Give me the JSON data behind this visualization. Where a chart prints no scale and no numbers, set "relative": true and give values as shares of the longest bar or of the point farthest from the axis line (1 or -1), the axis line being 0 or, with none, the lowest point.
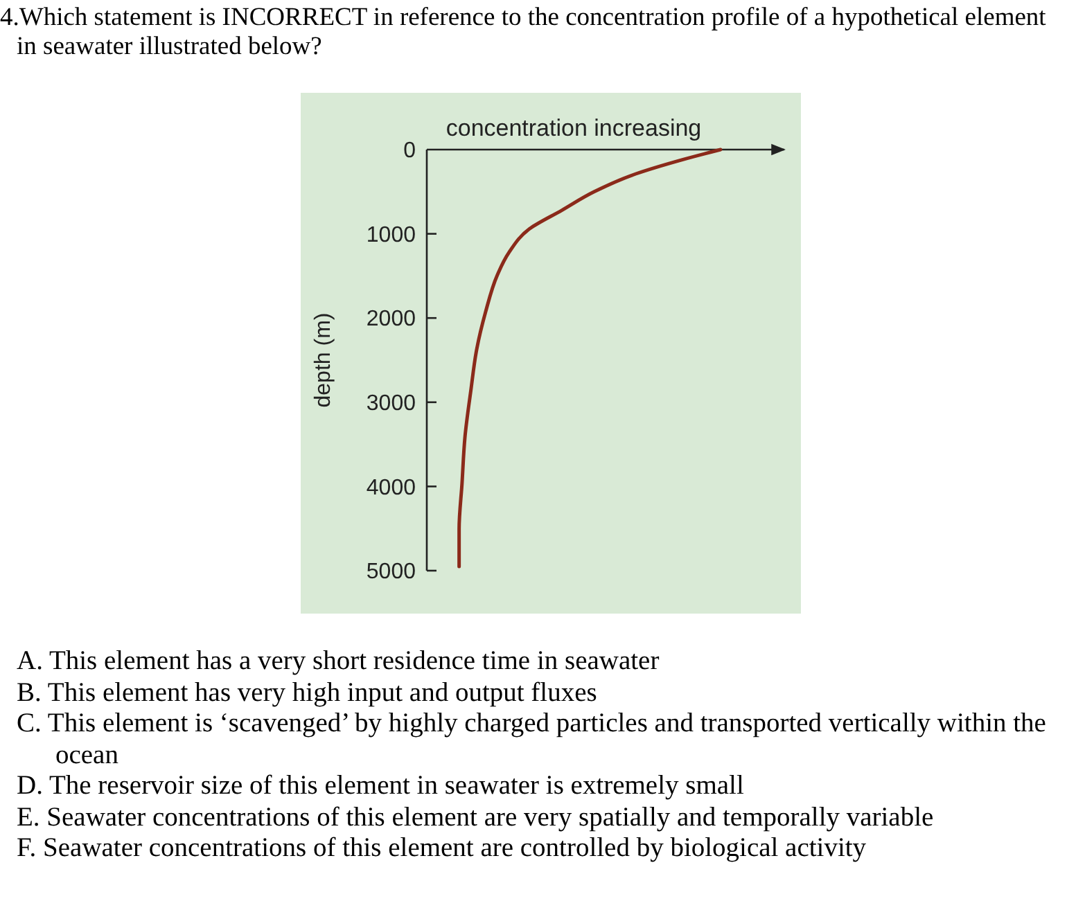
{
  "chart_data": {
    "type": "line",
    "orientation": "horizontal",
    "relative": true,
    "title": "4.Which statement is INCORRECT in reference to the concentration profile of a hypothetical element in seawater illustrated below?",
    "xlabel": "concentration increasing",
    "ylabel": "depth (m)",
    "x": [
      0,
      120,
      290,
      500,
      720,
      940,
      1220,
      1490,
      1930,
      2370,
      2860,
      3410,
      3960,
      4510,
      4950
    ],
    "series": [
      {
        "color": "#8b2a1a",
        "values": [
          1.0,
          0.87,
          0.71,
          0.57,
          0.46,
          0.35,
          0.28,
          0.24,
          0.2,
          0.17,
          0.15,
          0.13,
          0.12,
          0.11,
          0.11
        ]
      }
    ],
    "ylim": [
      5000,
      0
    ],
    "yticks": [
      0,
      1000,
      2000,
      3000,
      4000,
      5000
    ],
    "annotations": [
      "A. This element has a very short residence time in seawater",
      "B. This element has very high input and output fluxes",
      "C. This element is ‘scavenged’ by highly charged particles and transported vertically within the ocean",
      "D. The reservoir size of this element in seawater is extremely small",
      "E. Seawater concentrations of this element are very spatially and temporally variable",
      "F. Seawater concentrations of this element are controlled by biological activity"
    ]
  }
}
